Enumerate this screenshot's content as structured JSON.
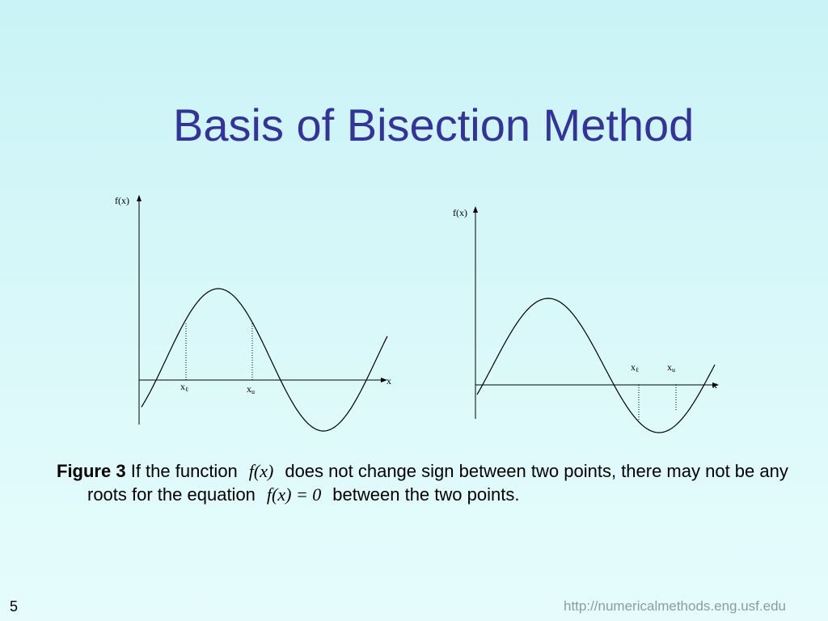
{
  "title": "Basis of Bisection Method",
  "figures": [
    {
      "y_label": "f(x)",
      "x_label": "x",
      "xl_label": "x",
      "xl_sub": "ℓ",
      "xu_label": "x",
      "xu_sub": "u"
    },
    {
      "y_label": "f(x)",
      "x_label": "x",
      "xl_label": "x",
      "xl_sub": "ℓ",
      "xu_label": "x",
      "xu_sub": "u"
    }
  ],
  "caption": {
    "label": "Figure 3",
    "text1": "If the function",
    "math1": "f(x)",
    "text2": "does not change sign between two points, there may not be any roots for the equation",
    "math2": "f(x) = 0",
    "text3": "between the two points."
  },
  "page_number": "5",
  "footer": "http://numericalmethods.eng.usf.edu"
}
